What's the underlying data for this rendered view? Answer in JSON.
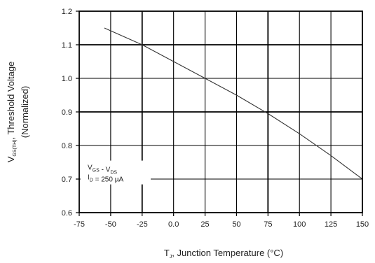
{
  "chart_data": {
    "type": "line",
    "xlabel": {
      "prefix": "T",
      "sub": "J",
      "text": ", Junction Temperature (°C)"
    },
    "ylabel": {
      "line1": {
        "prefix": "V",
        "sub": "GS(TH)",
        "text": ", Threshold Voltage"
      },
      "line2": "(Normalized)"
    },
    "xlim": [
      -75,
      150
    ],
    "ylim": [
      0.6,
      1.2
    ],
    "xticks": [
      -75,
      -50,
      -25,
      0,
      25,
      50,
      75,
      100,
      125,
      150
    ],
    "xtick_labels": [
      "-75",
      "-50",
      "-25",
      "0.0",
      "25",
      "50",
      "75",
      "100",
      "125",
      "150"
    ],
    "yticks": [
      0.6,
      0.7,
      0.8,
      0.9,
      1.0,
      1.1,
      1.2
    ],
    "ytick_labels": [
      "0.6",
      "0.7",
      "0.8",
      "0.9",
      "1.0",
      "1.1",
      "1.2"
    ],
    "grid": true,
    "series": [
      {
        "x": [
          -55,
          -25,
          0,
          25,
          50,
          75,
          100,
          125,
          150
        ],
        "y": [
          1.15,
          1.1,
          1.05,
          1.0,
          0.95,
          0.895,
          0.835,
          0.77,
          0.7
        ]
      }
    ],
    "annotations": [
      {
        "parts": [
          {
            "t": "V"
          },
          {
            "t": "GS",
            "sub": true
          },
          {
            "t": " - V"
          },
          {
            "t": "DS",
            "sub": true
          }
        ]
      },
      {
        "parts": [
          {
            "t": "I"
          },
          {
            "t": "D",
            "sub": true
          },
          {
            "t": " = 250 µA"
          }
        ]
      }
    ]
  }
}
